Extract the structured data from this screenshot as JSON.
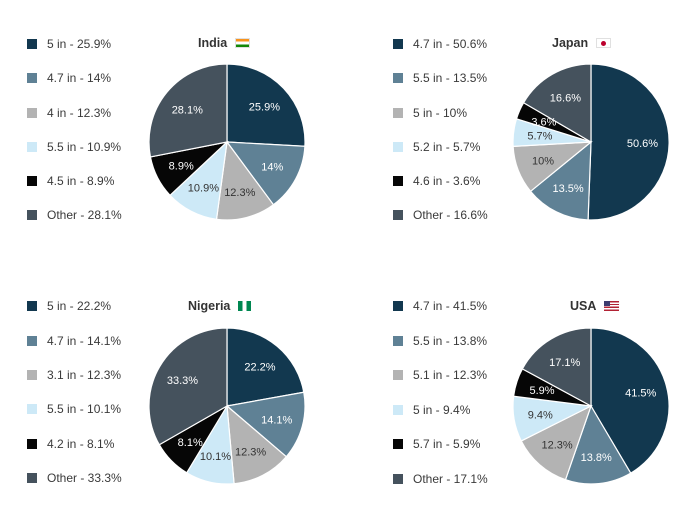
{
  "chart_data": [
    {
      "type": "pie",
      "title": "India",
      "flag": "india-flag-icon",
      "labels": [
        "5 in",
        "4.7 in",
        "4 in",
        "5.5 in",
        "4.5 in",
        "Other"
      ],
      "values": [
        25.9,
        14,
        12.3,
        10.9,
        8.9,
        28.1
      ],
      "legend": [
        "5 in - 25.9%",
        "4.7 in - 14%",
        "4 in - 12.3%",
        "5.5 in - 10.9%",
        "4.5 in - 8.9%",
        "Other - 28.1%"
      ],
      "slice_labels": [
        "25.9%",
        "14%",
        "12.3%",
        "10.9%",
        "8.9%",
        "28.1%"
      ]
    },
    {
      "type": "pie",
      "title": "Japan",
      "flag": "japan-flag-icon",
      "labels": [
        "4.7 in",
        "5.5 in",
        "5 in",
        "5.2 in",
        "4.6 in",
        "Other"
      ],
      "values": [
        50.6,
        13.5,
        10,
        5.7,
        3.6,
        16.6
      ],
      "legend": [
        "4.7 in - 50.6%",
        "5.5 in - 13.5%",
        "5 in - 10%",
        "5.2 in - 5.7%",
        "4.6 in - 3.6%",
        "Other - 16.6%"
      ],
      "slice_labels": [
        "50.6%",
        "13.5%",
        "10%",
        "5.7%",
        "3.6%",
        "16.6%"
      ]
    },
    {
      "type": "pie",
      "title": "Nigeria",
      "flag": "nigeria-flag-icon",
      "labels": [
        "5 in",
        "4.7 in",
        "3.1 in",
        "5.5 in",
        "4.2 in",
        "Other"
      ],
      "values": [
        22.2,
        14.1,
        12.3,
        10.1,
        8.1,
        33.3
      ],
      "legend": [
        "5 in - 22.2%",
        "4.7 in - 14.1%",
        "3.1 in - 12.3%",
        "5.5 in - 10.1%",
        "4.2 in - 8.1%",
        "Other - 33.3%"
      ],
      "slice_labels": [
        "22.2%",
        "14.1%",
        "12.3%",
        "10.1%",
        "8.1%",
        "33.3%"
      ]
    },
    {
      "type": "pie",
      "title": "USA",
      "flag": "usa-flag-icon",
      "labels": [
        "4.7 in",
        "5.5 in",
        "5.1 in",
        "5 in",
        "5.7 in",
        "Other"
      ],
      "values": [
        41.5,
        13.8,
        12.3,
        9.4,
        5.9,
        17.1
      ],
      "legend": [
        "4.7 in - 41.5%",
        "5.5 in - 13.8%",
        "5.1 in - 12.3%",
        "5 in - 9.4%",
        "5.7 in - 5.9%",
        "Other - 17.1%"
      ],
      "slice_labels": [
        "41.5%",
        "13.8%",
        "12.3%",
        "9.4%",
        "5.9%",
        "17.1%"
      ]
    }
  ],
  "colors": {
    "slices": [
      "#12384f",
      "#5f8195",
      "#b3b3b3",
      "#cde9f7",
      "#060606",
      "#45525d"
    ],
    "label_light": "#ffffff",
    "label_dark": "#333333"
  }
}
